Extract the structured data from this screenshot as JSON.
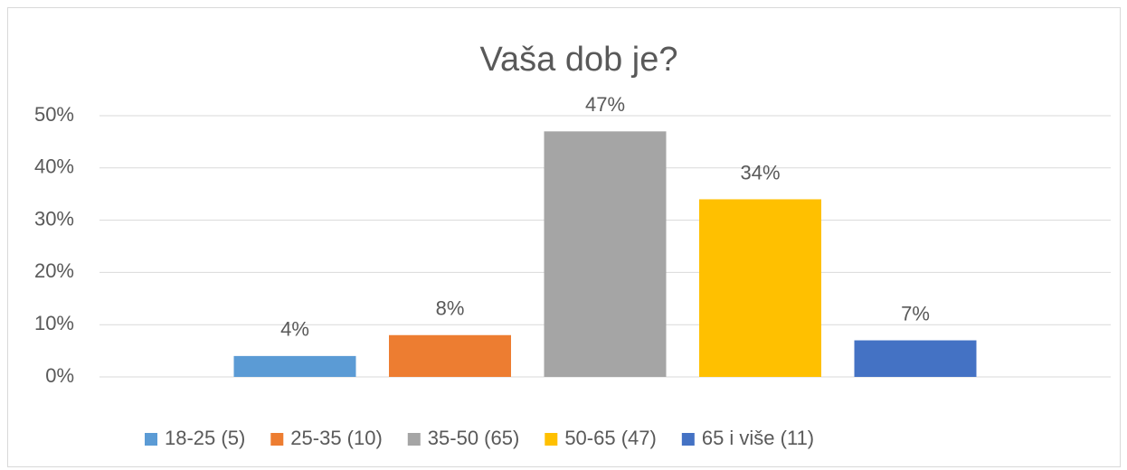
{
  "chart_data": {
    "type": "bar",
    "title": "Vaša dob je?",
    "categories": [
      null
    ],
    "series": [
      {
        "name": "18-25 (5)",
        "color": "#5b9bd5",
        "values": [
          4
        ],
        "value_labels": [
          "4%"
        ]
      },
      {
        "name": "25-35 (10)",
        "color": "#ed7d31",
        "values": [
          8
        ],
        "value_labels": [
          "8%"
        ]
      },
      {
        "name": "35-50 (65)",
        "color": "#a5a5a5",
        "values": [
          47
        ],
        "value_labels": [
          "47%"
        ]
      },
      {
        "name": "50-65 (47)",
        "color": "#ffc000",
        "values": [
          34
        ],
        "value_labels": [
          "34%"
        ]
      },
      {
        "name": "65 i više (11)",
        "color": "#4472c4",
        "values": [
          7
        ],
        "value_labels": [
          "7%"
        ]
      }
    ],
    "ylim": [
      0,
      50
    ],
    "yticks": [
      {
        "value": 0,
        "label": "0%"
      },
      {
        "value": 10,
        "label": "10%"
      },
      {
        "value": 20,
        "label": "20%"
      },
      {
        "value": 30,
        "label": "30%"
      },
      {
        "value": 40,
        "label": "40%"
      },
      {
        "value": 50,
        "label": "50%"
      }
    ],
    "grid": true,
    "legend": "bottom"
  }
}
